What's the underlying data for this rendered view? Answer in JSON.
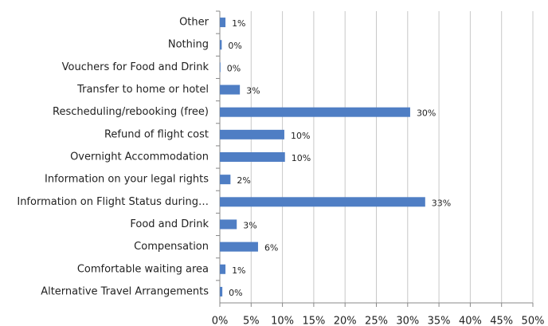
{
  "chart_data": {
    "type": "hbar",
    "categories": [
      "Other",
      "Nothing",
      "Vouchers for Food and Drink",
      "Transfer to home or hotel",
      "Rescheduling/rebooking (free)",
      "Refund of flight cost",
      "Overnight Accommodation",
      "Information on your legal rights",
      "Information on Flight Status during…",
      "Food and Drink",
      "Compensation",
      "Comfortable waiting area",
      "Alternative Travel Arrangements"
    ],
    "values": [
      0.9,
      0.3,
      0.1,
      3.2,
      30.4,
      10.3,
      10.4,
      1.7,
      32.8,
      2.7,
      6.1,
      0.9,
      0.4
    ],
    "value_labels": [
      "1%",
      "0%",
      "0%",
      "3%",
      "30%",
      "10%",
      "10%",
      "2%",
      "33%",
      "3%",
      "6%",
      "1%",
      "0%"
    ],
    "color": "#4f7ec4",
    "xlim": [
      0,
      50
    ],
    "xticks": [
      {
        "value": 0,
        "label": "0%"
      },
      {
        "value": 5,
        "label": "5%"
      },
      {
        "value": 10,
        "label": "10%"
      },
      {
        "value": 15,
        "label": "15%"
      },
      {
        "value": 20,
        "label": "20%"
      },
      {
        "value": 25,
        "label": "25%"
      },
      {
        "value": 30,
        "label": "30%"
      },
      {
        "value": 35,
        "label": "35%"
      },
      {
        "value": 40,
        "label": "40%"
      },
      {
        "value": 45,
        "label": "45%"
      },
      {
        "value": 50,
        "label": "50%"
      }
    ],
    "grid": true
  }
}
